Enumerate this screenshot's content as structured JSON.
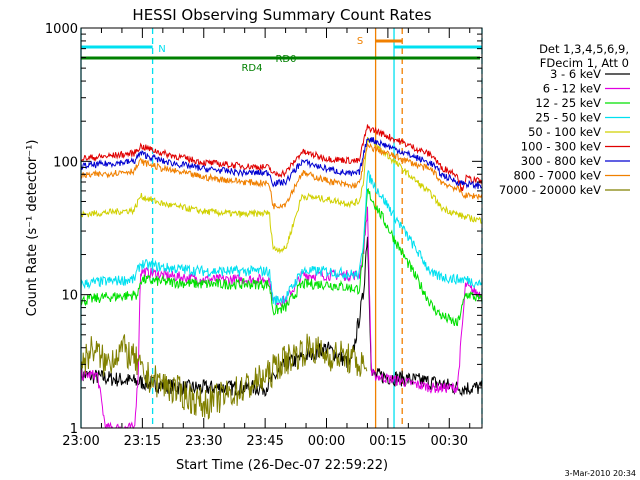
{
  "chart_data": {
    "type": "line",
    "title": "HESSI Observing Summary Count Rates",
    "xlabel": "Start Time (26-Dec-07 22:59:22)",
    "ylabel": "Count Rate (s⁻¹ detector⁻¹)",
    "x_start_min": 0,
    "x_end_min": 98,
    "xticks": [
      {
        "min": 0,
        "label": "23:00"
      },
      {
        "min": 15,
        "label": "23:15"
      },
      {
        "min": 30,
        "label": "23:30"
      },
      {
        "min": 45,
        "label": "23:45"
      },
      {
        "min": 60,
        "label": "00:00"
      },
      {
        "min": 75,
        "label": "00:15"
      },
      {
        "min": 90,
        "label": "00:30"
      }
    ],
    "yscale": "log",
    "ylim": [
      1,
      1000
    ],
    "yticks": [
      {
        "value": 1,
        "label": "1"
      },
      {
        "value": 10,
        "label": "10"
      },
      {
        "value": 100,
        "label": "100"
      },
      {
        "value": 1000,
        "label": "1000"
      }
    ],
    "legend_placement": "right",
    "legend_header": [
      "Det 1,3,4,5,6,9,",
      "FDecim 1, Att 0"
    ],
    "series": [
      {
        "name": "3 - 6 keV",
        "color": "#000000",
        "points": [
          [
            0,
            2.5
          ],
          [
            15,
            2.2
          ],
          [
            25,
            2.0
          ],
          [
            45,
            2.0
          ],
          [
            50,
            3.0
          ],
          [
            60,
            4.0
          ],
          [
            66,
            3.0
          ],
          [
            69,
            10
          ],
          [
            70,
            30
          ],
          [
            71,
            2.5
          ],
          [
            86,
            2.2
          ],
          [
            92,
            2.0
          ],
          [
            98,
            2.0
          ]
        ]
      },
      {
        "name": "6 - 12 keV",
        "color": "#e000e0",
        "points": [
          [
            0,
            2.5
          ],
          [
            4,
            2.5
          ],
          [
            6,
            1.0
          ],
          [
            13,
            1.0
          ],
          [
            14,
            2.5
          ],
          [
            14.5,
            15
          ],
          [
            20,
            14
          ],
          [
            30,
            13
          ],
          [
            40,
            13
          ],
          [
            46,
            13
          ],
          [
            47,
            9
          ],
          [
            50,
            9
          ],
          [
            54,
            14
          ],
          [
            60,
            14
          ],
          [
            68,
            14
          ],
          [
            69,
            20
          ],
          [
            70,
            45
          ],
          [
            71,
            2.5
          ],
          [
            86,
            2.0
          ],
          [
            92,
            2.0
          ],
          [
            94,
            12
          ],
          [
            95,
            11
          ],
          [
            98,
            10
          ]
        ]
      },
      {
        "name": "12 - 25 keV",
        "color": "#00e000",
        "points": [
          [
            0,
            9
          ],
          [
            5,
            9.5
          ],
          [
            14,
            10
          ],
          [
            14.5,
            13
          ],
          [
            20,
            12.5
          ],
          [
            30,
            12
          ],
          [
            40,
            12
          ],
          [
            46,
            12
          ],
          [
            47,
            7.5
          ],
          [
            50,
            8
          ],
          [
            54,
            12
          ],
          [
            60,
            12
          ],
          [
            68,
            11
          ],
          [
            69,
            20
          ],
          [
            70,
            60
          ],
          [
            86,
            8
          ],
          [
            88,
            7
          ],
          [
            92,
            6
          ],
          [
            94,
            10
          ],
          [
            95,
            10
          ],
          [
            98,
            9
          ]
        ]
      },
      {
        "name": "25 - 50 keV",
        "color": "#00e0f0",
        "points": [
          [
            0,
            12
          ],
          [
            5,
            12.5
          ],
          [
            13,
            13
          ],
          [
            14.5,
            17
          ],
          [
            20,
            16
          ],
          [
            30,
            15
          ],
          [
            40,
            15
          ],
          [
            46,
            15
          ],
          [
            47,
            9
          ],
          [
            50,
            9.5
          ],
          [
            54,
            15
          ],
          [
            60,
            15
          ],
          [
            68,
            14
          ],
          [
            69,
            25
          ],
          [
            70,
            80
          ],
          [
            86,
            14
          ],
          [
            92,
            13
          ],
          [
            94,
            13
          ],
          [
            98,
            12
          ]
        ]
      },
      {
        "name": "50 - 100 keV",
        "color": "#d0d000",
        "points": [
          [
            0,
            40
          ],
          [
            5,
            41
          ],
          [
            13,
            43
          ],
          [
            14.5,
            55
          ],
          [
            20,
            48
          ],
          [
            30,
            42
          ],
          [
            40,
            40
          ],
          [
            46,
            41
          ],
          [
            47,
            22
          ],
          [
            50,
            22
          ],
          [
            54,
            55
          ],
          [
            60,
            52
          ],
          [
            66,
            48
          ],
          [
            68,
            50
          ],
          [
            69,
            70
          ],
          [
            70,
            150
          ],
          [
            86,
            55
          ],
          [
            88,
            45
          ],
          [
            92,
            40
          ],
          [
            94,
            38
          ],
          [
            98,
            36
          ]
        ]
      },
      {
        "name": "100 - 300 keV",
        "color": "#e00000",
        "points": [
          [
            0,
            105
          ],
          [
            5,
            108
          ],
          [
            13,
            115
          ],
          [
            14.5,
            130
          ],
          [
            20,
            115
          ],
          [
            30,
            98
          ],
          [
            40,
            92
          ],
          [
            46,
            90
          ],
          [
            47,
            80
          ],
          [
            50,
            82
          ],
          [
            54,
            118
          ],
          [
            60,
            105
          ],
          [
            68,
            100
          ],
          [
            69,
            140
          ],
          [
            70,
            180
          ],
          [
            86,
            110
          ],
          [
            88,
            90
          ],
          [
            92,
            80
          ],
          [
            93,
            60
          ],
          [
            94,
            75
          ],
          [
            98,
            70
          ]
        ]
      },
      {
        "name": "300 - 800 keV",
        "color": "#0000d0",
        "points": [
          [
            0,
            92
          ],
          [
            5,
            95
          ],
          [
            13,
            100
          ],
          [
            14.5,
            115
          ],
          [
            20,
            100
          ],
          [
            30,
            88
          ],
          [
            40,
            82
          ],
          [
            46,
            82
          ],
          [
            47,
            68
          ],
          [
            50,
            70
          ],
          [
            54,
            100
          ],
          [
            60,
            88
          ],
          [
            66,
            80
          ],
          [
            68,
            82
          ],
          [
            69,
            110
          ],
          [
            70,
            150
          ],
          [
            86,
            95
          ],
          [
            88,
            80
          ],
          [
            92,
            70
          ],
          [
            94,
            68
          ],
          [
            98,
            65
          ]
        ]
      },
      {
        "name": "800 - 7000 keV",
        "color": "#f08000",
        "points": [
          [
            0,
            78
          ],
          [
            5,
            80
          ],
          [
            13,
            85
          ],
          [
            14.5,
            100
          ],
          [
            20,
            88
          ],
          [
            30,
            76
          ],
          [
            40,
            70
          ],
          [
            46,
            68
          ],
          [
            47,
            46
          ],
          [
            50,
            48
          ],
          [
            54,
            82
          ],
          [
            60,
            72
          ],
          [
            66,
            65
          ],
          [
            68,
            68
          ],
          [
            69,
            95
          ],
          [
            70,
            130
          ],
          [
            86,
            85
          ],
          [
            88,
            70
          ],
          [
            92,
            62
          ],
          [
            94,
            55
          ],
          [
            98,
            55
          ]
        ]
      },
      {
        "name": "7000 - 20000 keV",
        "color": "#808000",
        "points": [
          [
            0,
            3
          ],
          [
            3,
            4
          ],
          [
            6,
            3
          ],
          [
            10,
            4
          ],
          [
            14,
            3
          ],
          [
            15,
            2.5
          ],
          [
            22,
            2
          ],
          [
            30,
            1.5
          ],
          [
            40,
            2
          ],
          [
            46,
            2.5
          ],
          [
            48,
            3
          ],
          [
            52,
            3.5
          ],
          [
            56,
            4
          ],
          [
            60,
            3.5
          ],
          [
            64,
            3.5
          ],
          [
            68,
            3
          ],
          [
            69,
            3
          ],
          [
            70,
            2.5
          ]
        ]
      }
    ],
    "annotations": {
      "bars": [
        {
          "label": "N",
          "color": "#00e0f0",
          "segments": [
            [
              0,
              17.5
            ],
            [
              76.5,
              98
            ]
          ]
        },
        {
          "label": "S",
          "color": "#f08000",
          "segments": [
            [
              72,
              78.5
            ]
          ]
        },
        {
          "label": "RD0",
          "color": "#008000",
          "segments": [
            [
              0,
              97.5
            ]
          ]
        },
        {
          "label": "RD4",
          "color": "#008000",
          "segments": [
            [
              0,
              91.5
            ],
            [
              93.5,
              97.5
            ]
          ]
        }
      ],
      "vlines": [
        {
          "min": 0,
          "color": "#00e0f0",
          "style": "solid"
        },
        {
          "min": 17.5,
          "color": "#00e0f0",
          "style": "dashed"
        },
        {
          "min": 72,
          "color": "#f08000",
          "style": "solid"
        },
        {
          "min": 76.5,
          "color": "#00e0f0",
          "style": "solid"
        },
        {
          "min": 78.5,
          "color": "#f08000",
          "style": "dashed"
        },
        {
          "min": 98,
          "color": "#00e0f0",
          "style": "dashed"
        }
      ]
    }
  },
  "footer": {
    "date": "3-Mar-2010 20:34"
  }
}
